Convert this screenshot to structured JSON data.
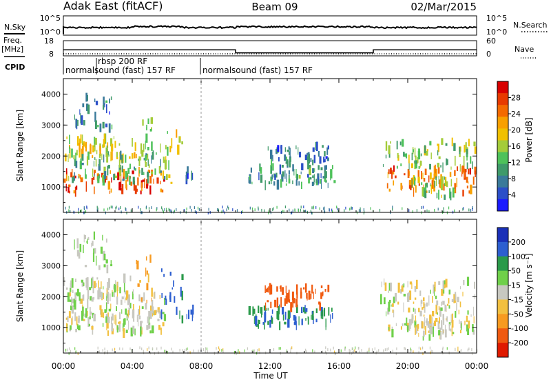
{
  "header": {
    "station": "Adak East (fitACF)",
    "beam": "Beam 09",
    "date": "02/Mar/2015"
  },
  "labels": {
    "nsky": "N.Sky",
    "nsearch": "N.Search",
    "freq_line1": "Freq.",
    "freq_line2": "[MHz]",
    "nave": "Nave",
    "cpid": "CPID",
    "sky_tick_hi": "10^5",
    "sky_tick_lo": "10^0",
    "freq_tick_hi": "18",
    "freq_tick_lo": "8",
    "nave_tick_hi": "60",
    "nave_tick_lo": "0",
    "xlabel": "Time UT",
    "ylabel": "Slant Range [km]",
    "power_label": "Power [dB]",
    "velocity_label": "Velocity [m s⁻¹]"
  },
  "cpid_segments": [
    {
      "start_hour": 0.0,
      "end_hour": 8.0,
      "label": "normalsound (fast) 157 RF"
    },
    {
      "start_hour": 1.9,
      "end_hour": 8.0,
      "label": "rbsp 200 RF"
    },
    {
      "start_hour": 8.0,
      "end_hour": 24.0,
      "label": "normalsound (fast) 157 RF"
    }
  ],
  "chart_data": {
    "type": "heatmap",
    "x_ticks": [
      "00:00",
      "04:00",
      "08:00",
      "12:00",
      "16:00",
      "20:00",
      "00:00"
    ],
    "x_range_hours": [
      0,
      24
    ],
    "y_ticks": [
      "1000",
      "2000",
      "3000",
      "4000"
    ],
    "y_range_km": [
      180,
      4500
    ],
    "frequency_steps_mhz": [
      {
        "start_hour": 0,
        "end_hour": 10,
        "value": 12
      },
      {
        "start_hour": 10,
        "end_hour": 18,
        "value": 10
      },
      {
        "start_hour": 18,
        "end_hour": 24,
        "value": 12
      }
    ],
    "power_colorbar": {
      "label": "Power [dB]",
      "ticks": [
        "4",
        "8",
        "12",
        "16",
        "20",
        "24",
        "28"
      ],
      "colors": [
        "#1a1aff",
        "#2b4fc8",
        "#3a7a9a",
        "#3f9a6a",
        "#4ec25a",
        "#a4cc3a",
        "#f0c000",
        "#f8a000",
        "#f46a00",
        "#e83a00",
        "#d80000"
      ]
    },
    "velocity_colorbar": {
      "label": "Velocity [m s⁻¹]",
      "ticks": [
        "200",
        "100",
        "50",
        "15",
        "-15",
        "-50",
        "-100",
        "-200"
      ],
      "colors": [
        "#1a30b8",
        "#2d5fd0",
        "#2a9a4a",
        "#6fd04a",
        "#c8c8c0",
        "#f2c040",
        "#f79a20",
        "#f05a10",
        "#e01a00"
      ]
    }
  }
}
